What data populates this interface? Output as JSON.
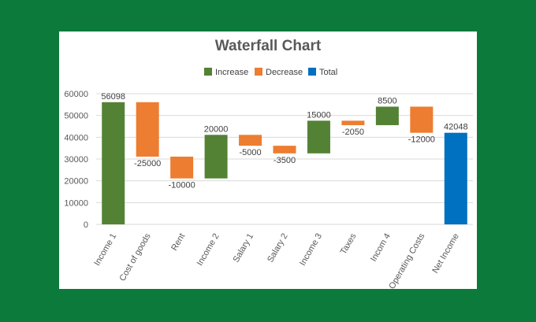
{
  "chart_data": {
    "type": "waterfall",
    "title": "Waterfall Chart",
    "legend": [
      {
        "name": "Increase",
        "color": "#548235"
      },
      {
        "name": "Decrease",
        "color": "#ed7d31"
      },
      {
        "name": "Total",
        "color": "#0070c0"
      }
    ],
    "legend_position": "top",
    "categories": [
      "Income 1",
      "Cost of goods",
      "Rent",
      "Income 2",
      "Salary 1",
      "Salary 2",
      "Income 3",
      "Taxes",
      "Incom 4",
      "Operating Costs",
      "Net Income"
    ],
    "values": [
      56098,
      -25000,
      -10000,
      20000,
      -5000,
      -3500,
      15000,
      -2050,
      8500,
      -12000,
      42048
    ],
    "kinds": [
      "Increase",
      "Decrease",
      "Decrease",
      "Increase",
      "Decrease",
      "Decrease",
      "Increase",
      "Decrease",
      "Increase",
      "Decrease",
      "Total"
    ],
    "ylim": [
      0,
      60000
    ],
    "yticks": [
      0,
      10000,
      20000,
      30000,
      40000,
      50000,
      60000
    ],
    "grid": true,
    "xlabel": "",
    "ylabel": ""
  }
}
